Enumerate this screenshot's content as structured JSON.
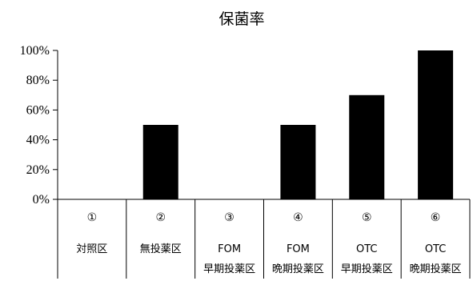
{
  "chart_data": {
    "type": "bar",
    "title": "保菌率",
    "categories": [
      {
        "number": "①",
        "line1": "対照区",
        "line2": ""
      },
      {
        "number": "②",
        "line1": "無投薬区",
        "line2": ""
      },
      {
        "number": "③",
        "line1": "FOM",
        "line2": "早期投薬区"
      },
      {
        "number": "④",
        "line1": "FOM",
        "line2": "晩期投薬区"
      },
      {
        "number": "⑤",
        "line1": "OTC",
        "line2": "早期投薬区"
      },
      {
        "number": "⑥",
        "line1": "OTC",
        "line2": "晩期投薬区"
      }
    ],
    "values": [
      0,
      50,
      0,
      50,
      70,
      100
    ],
    "ylim": [
      0,
      100
    ],
    "yticks": [
      "0%",
      "20%",
      "40%",
      "60%",
      "80%",
      "100%"
    ],
    "xlabel": "",
    "ylabel": "",
    "grid": false,
    "bar_color": "#000000"
  }
}
